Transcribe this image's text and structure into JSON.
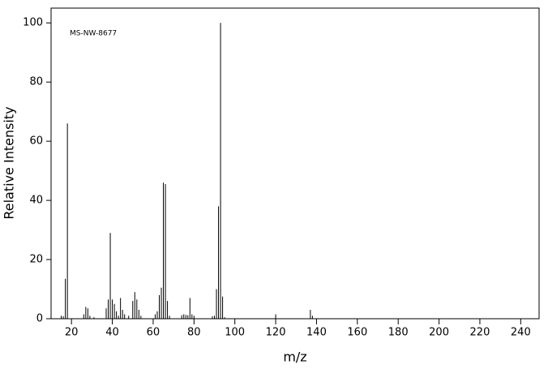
{
  "chart_data": {
    "type": "stem",
    "annotation": "MS-NW-8677",
    "xlabel": "m/z",
    "ylabel": "Relative Intensity",
    "x": [
      15,
      16,
      17,
      18,
      26,
      27,
      28,
      29,
      31,
      37,
      38,
      39,
      40,
      41,
      42,
      43,
      44,
      45,
      46,
      48,
      50,
      51,
      52,
      53,
      54,
      61,
      62,
      63,
      64,
      65,
      66,
      67,
      68,
      74,
      75,
      76,
      77,
      78,
      79,
      80,
      89,
      90,
      91,
      92,
      93,
      94,
      95,
      120,
      137,
      138
    ],
    "values": [
      1,
      0.8,
      13.5,
      66,
      1.5,
      4,
      3.5,
      1,
      0.5,
      3.5,
      6.5,
      29,
      6.5,
      5,
      2.5,
      1,
      7,
      3,
      1.5,
      1,
      6,
      9,
      6.5,
      3,
      1,
      1.5,
      2.5,
      8,
      10.5,
      46,
      45.5,
      6,
      1,
      1.2,
      1.5,
      1.3,
      1.2,
      7,
      1.5,
      1,
      0.8,
      1,
      10,
      38,
      100,
      7.5,
      0.5,
      1.5,
      3,
      1
    ],
    "color": "#000000",
    "xlim": [
      10,
      249
    ],
    "xticks": [
      20,
      40,
      60,
      80,
      100,
      120,
      140,
      160,
      180,
      200,
      220,
      240
    ],
    "ylim": [
      0,
      105
    ],
    "yticks": [
      0,
      20,
      40,
      60,
      80,
      100
    ]
  }
}
